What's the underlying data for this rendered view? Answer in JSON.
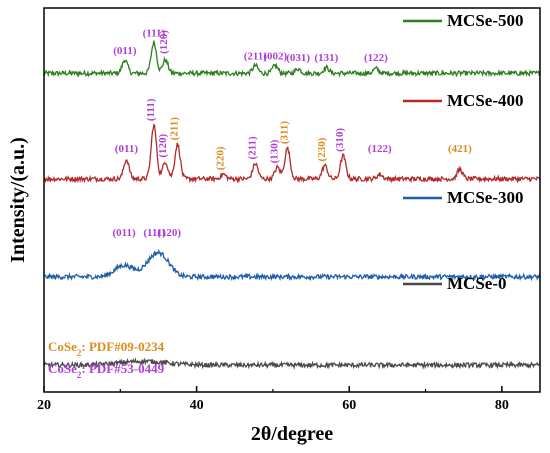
{
  "chart_data": {
    "type": "line",
    "title": "",
    "xlabel": "2θ/degree",
    "ylabel": "Intensity/(a.u.)",
    "xlim": [
      20,
      85
    ],
    "xticks": [
      20,
      40,
      60,
      80
    ],
    "yticks_shown": false,
    "grid": false,
    "legend_placement": "right, beside each curve",
    "series": [
      {
        "name": "MCSe-500",
        "color": "#2e7d1f",
        "baseline": 0.83,
        "peaks": [
          {
            "x": 30.6,
            "h": 0.035
          },
          {
            "x": 34.4,
            "h": 0.08
          },
          {
            "x": 35.9,
            "h": 0.035
          },
          {
            "x": 47.7,
            "h": 0.02
          },
          {
            "x": 50.3,
            "h": 0.02
          },
          {
            "x": 53.3,
            "h": 0.012
          },
          {
            "x": 57.0,
            "h": 0.015
          },
          {
            "x": 63.5,
            "h": 0.012
          }
        ]
      },
      {
        "name": "MCSe-400",
        "color": "#b22a2a",
        "baseline": 0.555,
        "peaks": [
          {
            "x": 30.8,
            "h": 0.05
          },
          {
            "x": 34.4,
            "h": 0.14
          },
          {
            "x": 35.9,
            "h": 0.045
          },
          {
            "x": 37.5,
            "h": 0.09
          },
          {
            "x": 43.5,
            "h": 0.012
          },
          {
            "x": 47.7,
            "h": 0.04
          },
          {
            "x": 50.6,
            "h": 0.03
          },
          {
            "x": 51.9,
            "h": 0.08
          },
          {
            "x": 56.8,
            "h": 0.035
          },
          {
            "x": 59.2,
            "h": 0.06
          },
          {
            "x": 64.0,
            "h": 0.012
          },
          {
            "x": 74.5,
            "h": 0.025
          }
        ]
      },
      {
        "name": "MCSe-300",
        "color": "#1f5fa8",
        "baseline": 0.3,
        "peaks": [
          {
            "x": 30.5,
            "h": 0.03,
            "w": 1.2
          },
          {
            "x": 34.5,
            "h": 0.05,
            "w": 1.2
          },
          {
            "x": 35.9,
            "h": 0.025,
            "w": 1.0
          }
        ]
      },
      {
        "name": "MCSe-0",
        "color": "#4a4a4a",
        "baseline": 0.07,
        "peaks": [
          {
            "x": 33.0,
            "h": 0.01,
            "w": 3.0
          }
        ]
      }
    ],
    "annotations": {
      "MCSe-500": [
        {
          "x": 30.6,
          "label": "(011)",
          "phase": "CoSe2_53"
        },
        {
          "x": 34.4,
          "label": "(111)",
          "phase": "CoSe2_53"
        },
        {
          "x": 36.1,
          "label": "(120)",
          "phase": "CoSe2_53",
          "rotate": true
        },
        {
          "x": 47.7,
          "label": "(211)",
          "phase": "CoSe2_53"
        },
        {
          "x": 50.3,
          "label": "(002)",
          "phase": "CoSe2_53"
        },
        {
          "x": 53.3,
          "label": "(031)",
          "phase": "CoSe2_53"
        },
        {
          "x": 57.0,
          "label": "(131)",
          "phase": "CoSe2_53"
        },
        {
          "x": 63.5,
          "label": "(122)",
          "phase": "CoSe2_53"
        }
      ],
      "MCSe-400": [
        {
          "x": 30.8,
          "label": "(011)",
          "phase": "CoSe2_53"
        },
        {
          "x": 34.4,
          "label": "(111)",
          "phase": "CoSe2_53",
          "rotate": true
        },
        {
          "x": 36.0,
          "label": "(120)",
          "phase": "CoSe2_53",
          "rotate": true
        },
        {
          "x": 37.5,
          "label": "(211)",
          "phase": "CoSe2_09",
          "rotate": true
        },
        {
          "x": 43.5,
          "label": "(220)",
          "phase": "CoSe2_09",
          "rotate": true
        },
        {
          "x": 47.7,
          "label": "(211)",
          "phase": "CoSe2_53",
          "rotate": true
        },
        {
          "x": 50.6,
          "label": "(130)",
          "phase": "CoSe2_53",
          "rotate": true
        },
        {
          "x": 51.9,
          "label": "(311)",
          "phase": "CoSe2_09",
          "rotate": true
        },
        {
          "x": 56.8,
          "label": "(230)",
          "phase": "CoSe2_09",
          "rotate": true
        },
        {
          "x": 59.2,
          "label": "(310)",
          "phase": "CoSe2_53",
          "rotate": true
        },
        {
          "x": 64.0,
          "label": "(122)",
          "phase": "CoSe2_53"
        },
        {
          "x": 74.5,
          "label": "(421)",
          "phase": "CoSe2_09"
        }
      ],
      "MCSe-300": [
        {
          "x": 30.5,
          "label": "(011)",
          "phase": "CoSe2_53"
        },
        {
          "x": 34.5,
          "label": "(111)",
          "phase": "CoSe2_53"
        },
        {
          "x": 36.4,
          "label": "(120)",
          "phase": "CoSe2_53"
        }
      ]
    },
    "phase_legend": [
      {
        "id": "CoSe2_09",
        "label": "CoSe",
        "sub": "2",
        "suffix": ": PDF#09-0234",
        "color": "#d98c1f"
      },
      {
        "id": "CoSe2_53",
        "label": "CoSe",
        "sub": "2",
        "suffix": ": PDF#53-0449",
        "color": "#b03fd6"
      }
    ]
  }
}
